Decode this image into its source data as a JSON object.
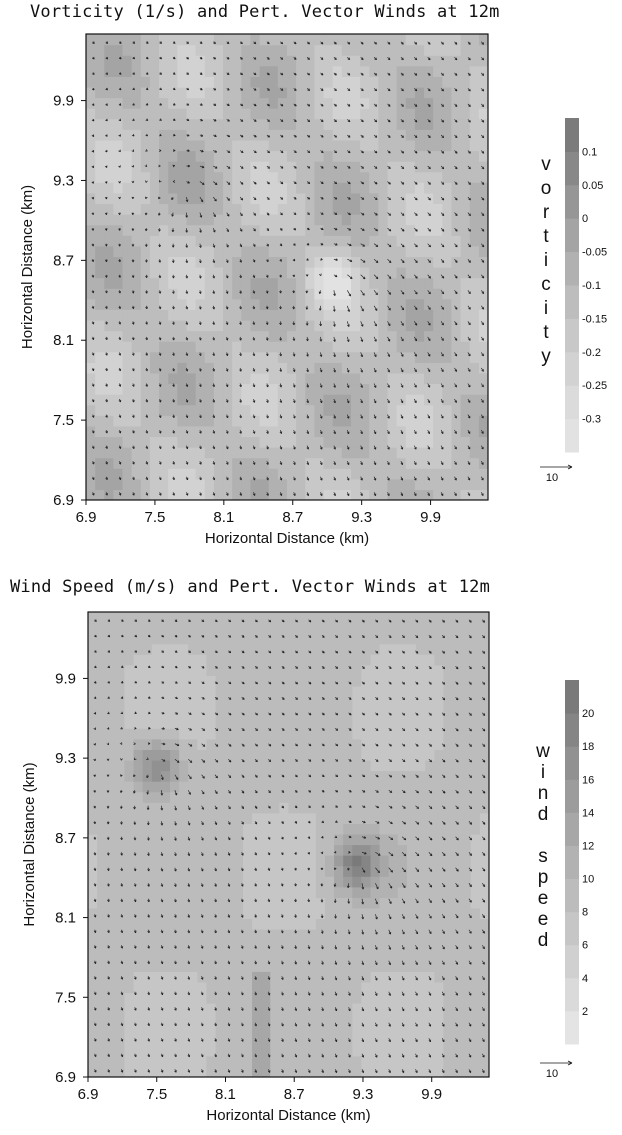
{
  "chart_data": [
    {
      "type": "heatmap",
      "title": "Vorticity (1/s) and Pert. Vector Winds at 12m",
      "xlabel": "Horizontal Distance (km)",
      "ylabel": "Horizontal Distance (km)",
      "xlim": [
        6.9,
        10.4
      ],
      "ylim": [
        6.9,
        10.4
      ],
      "x_ticks": [
        "6.9",
        "7.5",
        "8.1",
        "8.7",
        "9.3",
        "9.9"
      ],
      "y_ticks": [
        "6.9",
        "7.5",
        "8.1",
        "8.7",
        "9.3",
        "9.9"
      ],
      "colorbar": {
        "label": "vorticity",
        "label_letters": [
          "v",
          "o",
          "r",
          "t",
          "i",
          "c",
          "i",
          "t",
          "y"
        ],
        "ticks": [
          "0.1",
          "0.05",
          "0",
          "-0.05",
          "-0.1",
          "-0.15",
          "-0.2",
          "-0.25",
          "-0.3"
        ],
        "range": [
          -0.35,
          0.15
        ],
        "colors": [
          "#e2e2e2",
          "#dbdbdb",
          "#d2d2d2",
          "#c8c8c8",
          "#bdbdbd",
          "#b1b1b1",
          "#a4a4a4",
          "#969696",
          "#888888",
          "#7b7b7b"
        ]
      },
      "vector_reference": "10",
      "features": [
        {
          "name": "vortex",
          "x": 9.05,
          "y": 8.55,
          "vorticity": -0.3
        },
        {
          "name": "vortex",
          "x": 7.75,
          "y": 9.25,
          "vorticity": -0.1
        }
      ]
    },
    {
      "type": "heatmap",
      "title": "Wind Speed (m/s) and Pert. Vector Winds at 12m",
      "xlabel": "Horizontal Distance (km)",
      "ylabel": "Horizontal Distance (km)",
      "xlim": [
        6.9,
        10.4
      ],
      "ylim": [
        6.9,
        10.4
      ],
      "x_ticks": [
        "6.9",
        "7.5",
        "8.1",
        "8.7",
        "9.3",
        "9.9"
      ],
      "y_ticks": [
        "6.9",
        "7.5",
        "8.1",
        "8.7",
        "9.3",
        "9.9"
      ],
      "colorbar": {
        "label": "wind speed",
        "label_letters": [
          "w",
          "i",
          "n",
          "d",
          "",
          "s",
          "p",
          "e",
          "e",
          "d"
        ],
        "ticks": [
          "20",
          "18",
          "16",
          "14",
          "12",
          "10",
          "8",
          "6",
          "4",
          "2"
        ],
        "range": [
          0,
          22
        ],
        "colors": [
          "#e4e4e4",
          "#dadada",
          "#d0d0d0",
          "#c6c6c6",
          "#bcbcbc",
          "#b2b2b2",
          "#a7a7a7",
          "#9c9c9c",
          "#919191",
          "#858585",
          "#7a7a7a"
        ]
      },
      "vector_reference": "10",
      "features": [
        {
          "name": "vortex",
          "x": 9.25,
          "y": 8.5,
          "wind_speed": 20
        },
        {
          "name": "vortex",
          "x": 7.5,
          "y": 9.25,
          "wind_speed": 18
        }
      ]
    }
  ]
}
